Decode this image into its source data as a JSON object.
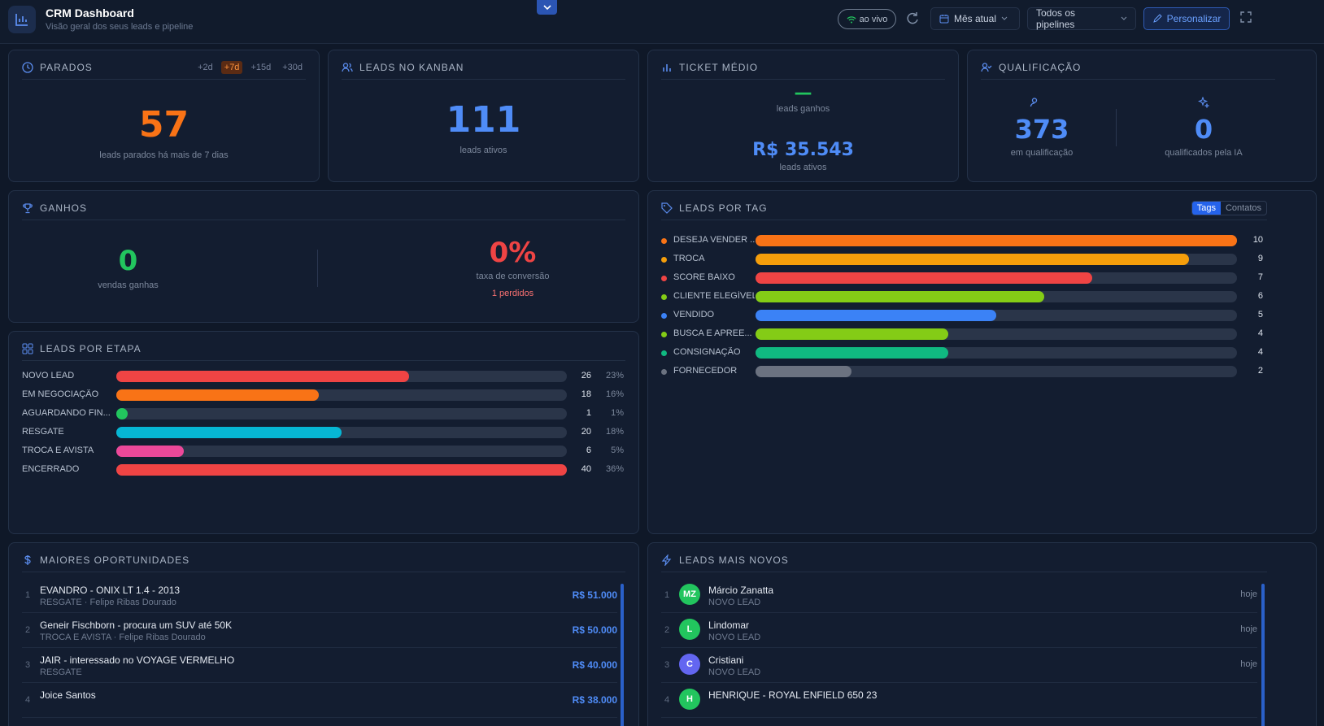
{
  "header": {
    "title": "CRM Dashboard",
    "subtitle": "Visão geral dos seus leads e pipeline",
    "live_label": "ao vivo",
    "period_select": "Mês atual",
    "pipeline_select": "Todos os pipelines",
    "personalize_label": "Personalizar"
  },
  "parados": {
    "title": "PARADOS",
    "filters": [
      "+2d",
      "+7d",
      "+15d",
      "+30d"
    ],
    "active_filter": "+7d",
    "value": "57",
    "caption": "leads parados há mais de 7 dias"
  },
  "kanban": {
    "title": "LEADS NO KANBAN",
    "value": "111",
    "caption": "leads ativos"
  },
  "ticket": {
    "title": "TICKET MÉDIO",
    "won_value": "—",
    "won_caption": "leads ganhos",
    "active_value": "R$ 35.543",
    "active_caption": "leads ativos"
  },
  "qualificacao": {
    "title": "QUALIFICAÇÃO",
    "in_value": "373",
    "in_caption": "em qualificação",
    "ai_value": "0",
    "ai_caption": "qualificados pela IA"
  },
  "ganhos": {
    "title": "GANHOS",
    "wins_value": "0",
    "wins_caption": "vendas ganhas",
    "rate_value": "0%",
    "rate_caption": "taxa de conversão",
    "lost_label": "1 perdidos"
  },
  "etapas": {
    "title": "LEADS POR ETAPA",
    "max": 40,
    "rows": [
      {
        "label": "NOVO LEAD",
        "value": 26,
        "pct": "23%",
        "color": "#ef4444"
      },
      {
        "label": "EM NEGOCIAÇÃO",
        "value": 18,
        "pct": "16%",
        "color": "#f97316"
      },
      {
        "label": "AGUARDANDO FIN...",
        "value": 1,
        "pct": "1%",
        "color": "#22c55e"
      },
      {
        "label": "RESGATE",
        "value": 20,
        "pct": "18%",
        "color": "#06b6d4"
      },
      {
        "label": "TROCA E AVISTA",
        "value": 6,
        "pct": "5%",
        "color": "#ec4899"
      },
      {
        "label": "ENCERRADO",
        "value": 40,
        "pct": "36%",
        "color": "#ef4444"
      }
    ]
  },
  "tags": {
    "title": "LEADS POR TAG",
    "toggle": [
      "Tags",
      "Contatos"
    ],
    "max": 10,
    "rows": [
      {
        "label": "DESEJA VENDER ...",
        "value": 10,
        "color": "#f97316"
      },
      {
        "label": "TROCA",
        "value": 9,
        "color": "#f59e0b"
      },
      {
        "label": "SCORE BAIXO",
        "value": 7,
        "color": "#ef4444"
      },
      {
        "label": "CLIENTE ELEGÍVEL",
        "value": 6,
        "color": "#84cc16"
      },
      {
        "label": "VENDIDO",
        "value": 5,
        "color": "#3b82f6"
      },
      {
        "label": "BUSCA E APREE...",
        "value": 4,
        "color": "#84cc16"
      },
      {
        "label": "CONSIGNAÇÃO",
        "value": 4,
        "color": "#10b981"
      },
      {
        "label": "FORNECEDOR",
        "value": 2,
        "color": "#6b7280"
      }
    ]
  },
  "oportunidades": {
    "title": "MAIORES OPORTUNIDADES",
    "items": [
      {
        "rank": "1",
        "title": "EVANDRO - ONIX LT 1.4 - 2013",
        "sub": "RESGATE · Felipe Ribas Dourado",
        "amount": "R$ 51.000"
      },
      {
        "rank": "2",
        "title": "Geneir Fischborn - procura um SUV até 50K",
        "sub": "TROCA E AVISTA · Felipe Ribas Dourado",
        "amount": "R$ 50.000"
      },
      {
        "rank": "3",
        "title": "JAIR - interessado no VOYAGE VERMELHO",
        "sub": "RESGATE",
        "amount": "R$ 40.000"
      },
      {
        "rank": "4",
        "title": "Joice Santos",
        "sub": "",
        "amount": "R$ 38.000"
      }
    ]
  },
  "novos": {
    "title": "LEADS MAIS NOVOS",
    "items": [
      {
        "rank": "1",
        "initials": "MZ",
        "name": "Márcio Zanatta",
        "stage": "NOVO LEAD",
        "when": "hoje",
        "color": "#22c55e"
      },
      {
        "rank": "2",
        "initials": "L",
        "name": "Lindomar",
        "stage": "NOVO LEAD",
        "when": "hoje",
        "color": "#22c55e"
      },
      {
        "rank": "3",
        "initials": "C",
        "name": "Cristiani",
        "stage": "NOVO LEAD",
        "when": "hoje",
        "color": "#6366f1"
      },
      {
        "rank": "4",
        "initials": "H",
        "name": "HENRIQUE - ROYAL ENFIELD 650 23",
        "stage": "",
        "when": "",
        "color": "#22c55e"
      }
    ]
  }
}
